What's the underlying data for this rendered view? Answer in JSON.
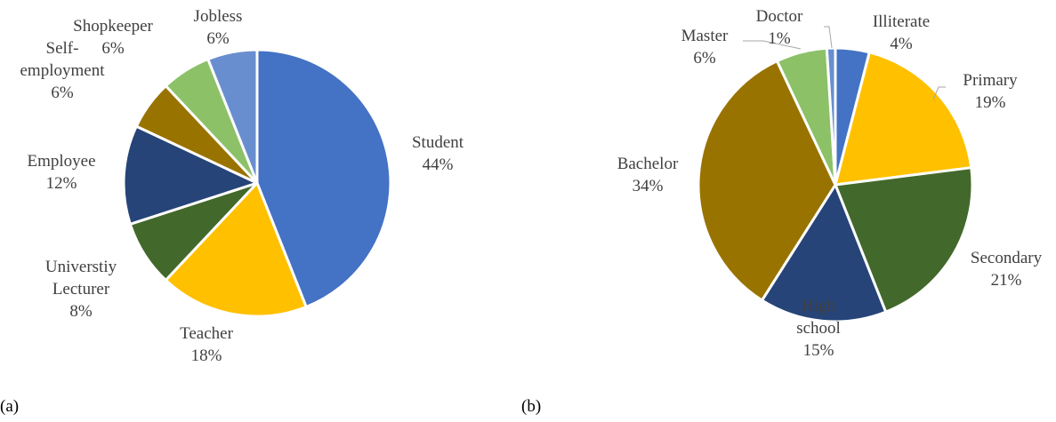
{
  "chart_data": [
    {
      "type": "pie",
      "panel_label": "(a)",
      "slices": [
        {
          "name": "Student",
          "pct": "44%",
          "value": 44,
          "color": "#4472C4"
        },
        {
          "name": "Teacher",
          "pct": "18%",
          "value": 18,
          "color": "#FFC000"
        },
        {
          "name": "Universtiy Lecturer",
          "label_lines": [
            "Universtiy",
            "Lecturer"
          ],
          "pct": "8%",
          "value": 8,
          "color": "#43682B"
        },
        {
          "name": "Employee",
          "pct": "12%",
          "value": 12,
          "color": "#264478"
        },
        {
          "name": "Self-employment",
          "label_lines": [
            "Self-",
            "employment"
          ],
          "pct": "6%",
          "value": 6,
          "color": "#997300"
        },
        {
          "name": "Shopkeeper",
          "pct": "6%",
          "value": 6,
          "color": "#8CC168"
        },
        {
          "name": "Jobless",
          "pct": "6%",
          "value": 6,
          "color": "#698ED0"
        }
      ]
    },
    {
      "type": "pie",
      "panel_label": "(b)",
      "slices": [
        {
          "name": "Illiterate",
          "pct": "4%",
          "value": 4,
          "color": "#4472C4"
        },
        {
          "name": "Primary",
          "pct": "19%",
          "value": 19,
          "color": "#FFC000"
        },
        {
          "name": "Secondary",
          "pct": "21%",
          "value": 21,
          "color": "#43682B"
        },
        {
          "name": "High school",
          "label_lines": [
            "High",
            "school"
          ],
          "pct": "15%",
          "value": 15,
          "color": "#264478"
        },
        {
          "name": "Bachelor",
          "pct": "34%",
          "value": 34,
          "color": "#997300"
        },
        {
          "name": "Master",
          "pct": "6%",
          "value": 6,
          "color": "#8CC168"
        },
        {
          "name": "Doctor",
          "pct": "1%",
          "value": 1,
          "color": "#698ED0"
        }
      ]
    }
  ]
}
